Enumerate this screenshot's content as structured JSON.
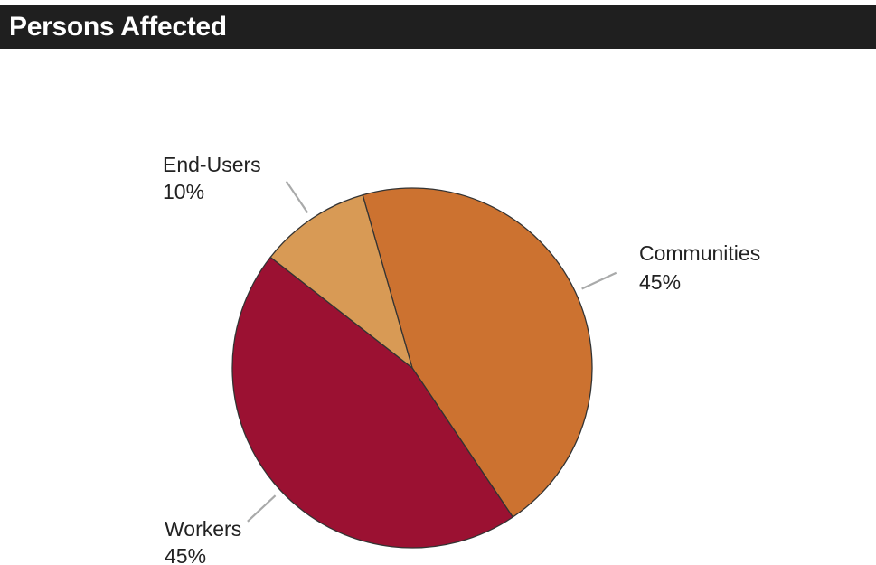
{
  "header": {
    "title": "Persons Affected"
  },
  "chart_data": {
    "type": "pie",
    "title": "Persons Affected",
    "categories": [
      "Communities",
      "Workers",
      "End-Users"
    ],
    "values": [
      45,
      45,
      10
    ],
    "labels": [
      "45%",
      "45%",
      "10%"
    ],
    "colors": {
      "Communities": "#cc7230",
      "Workers": "#9b1132",
      "End-Users": "#d89a55"
    },
    "start_angle_deg_clockwise_from_top": -16,
    "direction": "clockwise",
    "slice_border_color": "#333333",
    "leader_line_color": "#a9aaaa"
  }
}
